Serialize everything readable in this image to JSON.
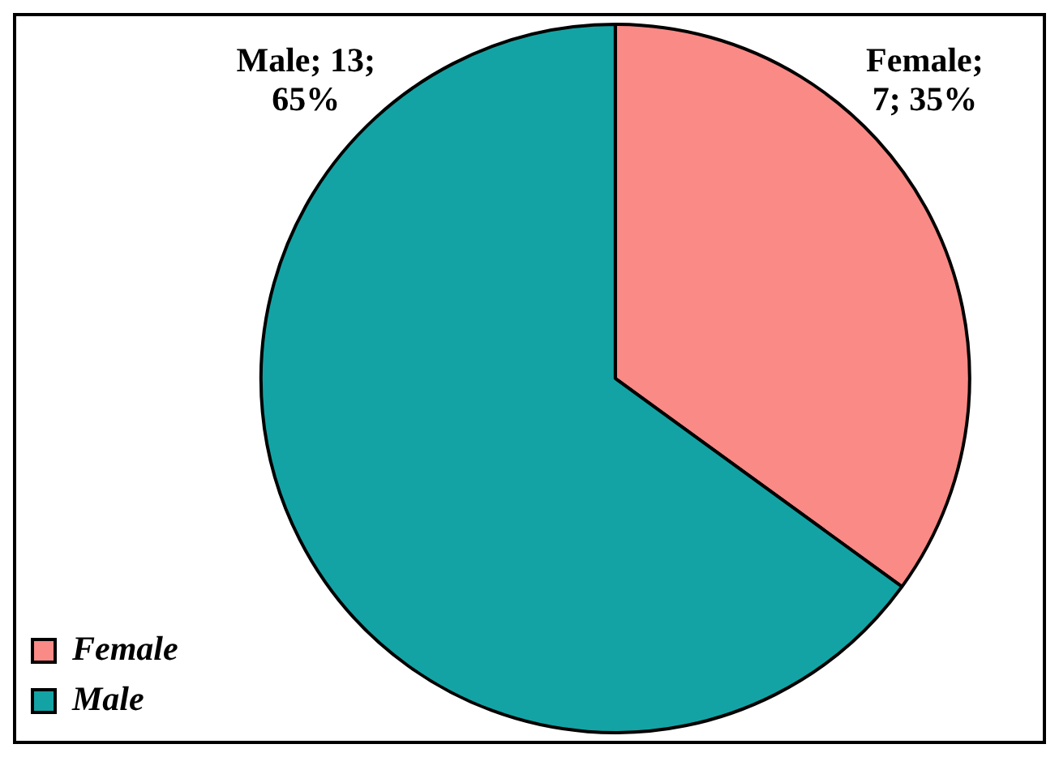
{
  "chart_data": {
    "type": "pie",
    "categories": [
      "Female",
      "Male"
    ],
    "values": [
      7,
      13
    ],
    "colors": [
      "#f98a86",
      "#14a3a4"
    ],
    "value_labels": [
      "Female;\n7; 35%",
      "Male; 13;\n65%"
    ],
    "legend": "bottom left"
  }
}
